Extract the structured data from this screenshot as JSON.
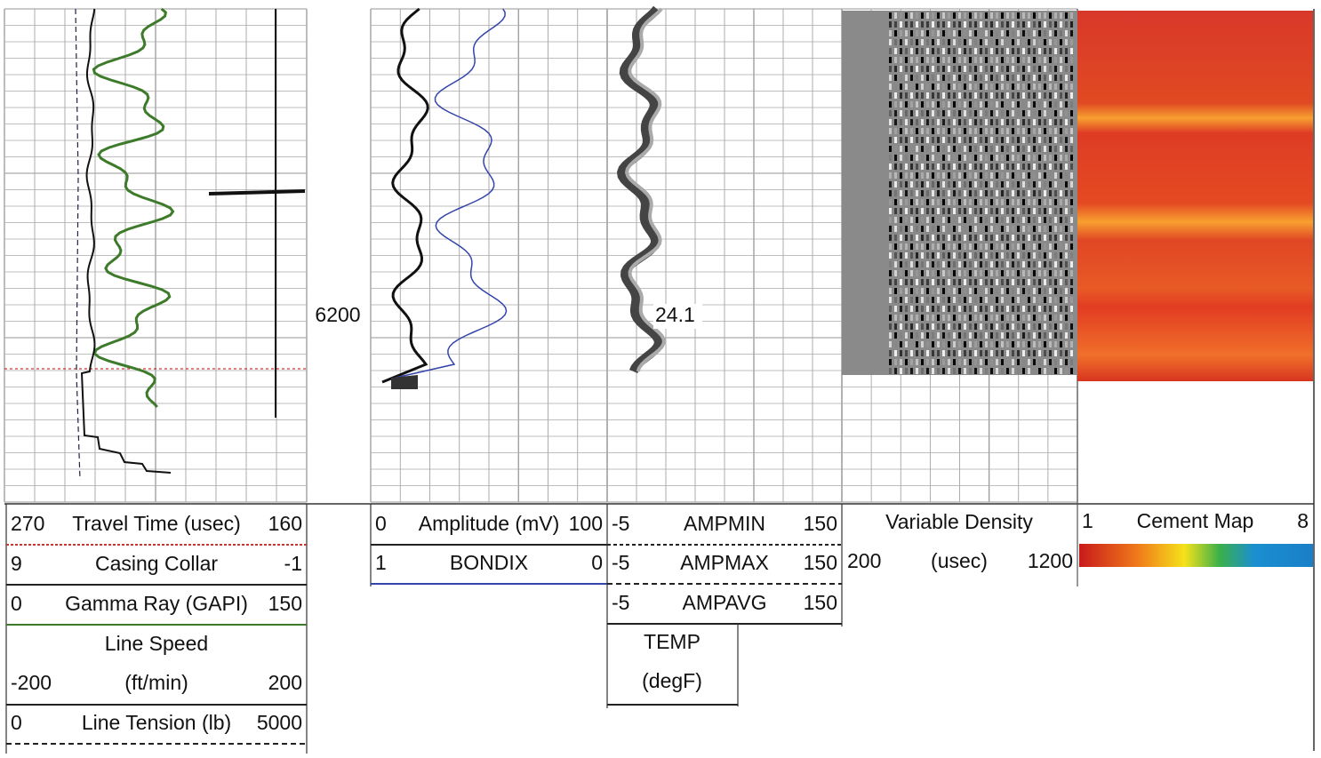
{
  "depth_label": "6200",
  "annotation": "24.1",
  "track1": {
    "headers": [
      {
        "left": "270",
        "label": "Travel Time (usec)",
        "right": "160"
      },
      {
        "left": "9",
        "label": "Casing Collar",
        "right": "-1"
      },
      {
        "left": "0",
        "label": "Gamma Ray (GAPI)",
        "right": "150"
      },
      {
        "left": "-200",
        "label": "Line Speed",
        "unit": "(ft/min)",
        "right": "200"
      },
      {
        "left": "0",
        "label": "Line Tension (lb)",
        "right": "5000"
      }
    ]
  },
  "track2": {
    "headers": [
      {
        "left": "0",
        "label": "Amplitude (mV)",
        "right": "100"
      },
      {
        "left": "1",
        "label": "BONDIX",
        "right": "0"
      }
    ]
  },
  "track3": {
    "headers": [
      {
        "left": "-5",
        "label": "AMPMIN",
        "right": "150"
      },
      {
        "left": "-5",
        "label": "AMPMAX",
        "right": "150"
      },
      {
        "left": "-5",
        "label": "AMPAVG",
        "right": "150"
      },
      {
        "label": "TEMP",
        "unit": "(degF)"
      }
    ]
  },
  "track4": {
    "headers": [
      {
        "label": "Variable Density",
        "left": "200",
        "unit": "(usec)",
        "right": "1200"
      }
    ]
  },
  "track5": {
    "headers": [
      {
        "left": "1",
        "label": "Cement Map",
        "right": "8"
      }
    ]
  }
}
